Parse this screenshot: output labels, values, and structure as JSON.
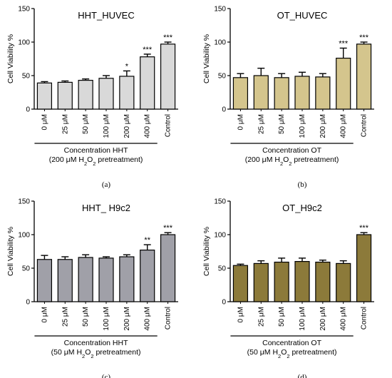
{
  "colors": {
    "axis": "#000000",
    "bar_stroke": "#000000"
  },
  "chart_data": [
    {
      "type": "bar",
      "panel": "(a)",
      "title": "HHT_HUVEC",
      "ylabel": "Cell Viability %",
      "ylim": [
        0,
        150
      ],
      "yticks": [
        0,
        50,
        100,
        150
      ],
      "categories": [
        "0 μM",
        "25 μM",
        "50 μM",
        "100 μM",
        "200 μM",
        "400 μM",
        "Control"
      ],
      "values": [
        39,
        40,
        43,
        46,
        49,
        78,
        97
      ],
      "errors": [
        2,
        2,
        2,
        4,
        8,
        4,
        3
      ],
      "significance": [
        "",
        "",
        "",
        "",
        "*",
        "***",
        "***"
      ],
      "bracket_span": [
        0,
        5
      ],
      "xlabel_line1": "Concentration HHT",
      "xlabel_line2_pre": "(200 μM H",
      "xlabel_line2_sub1": "2",
      "xlabel_line2_mid": "O",
      "xlabel_line2_sub2": "2",
      "xlabel_line2_post": " pretreatment)",
      "color": "#d9d9d9"
    },
    {
      "type": "bar",
      "panel": "(b)",
      "title": "OT_HUVEC",
      "ylabel": "Cell Viability %",
      "ylim": [
        0,
        150
      ],
      "yticks": [
        0,
        50,
        100,
        150
      ],
      "categories": [
        "0 μM",
        "25 μM",
        "50 μM",
        "100 μM",
        "200 μM",
        "400 μM",
        "Control"
      ],
      "values": [
        47,
        50,
        47,
        49,
        48,
        76,
        97
      ],
      "errors": [
        6,
        11,
        6,
        6,
        5,
        15,
        3
      ],
      "significance": [
        "",
        "",
        "",
        "",
        "",
        "***",
        "***"
      ],
      "bracket_span": [
        0,
        5
      ],
      "xlabel_line1": "Concentration OT",
      "xlabel_line2_pre": "(200 μM H",
      "xlabel_line2_sub1": "2",
      "xlabel_line2_mid": "O",
      "xlabel_line2_sub2": "2",
      "xlabel_line2_post": " pretreatment)",
      "color": "#d4c58d"
    },
    {
      "type": "bar",
      "panel": "(c)",
      "title": "HHT_ H9c2",
      "ylabel": "Cell Viability %",
      "ylim": [
        0,
        150
      ],
      "yticks": [
        0,
        50,
        100,
        150
      ],
      "categories": [
        "0 μM",
        "25 μM",
        "50 μM",
        "100 μM",
        "200 μM",
        "400 μM",
        "Control"
      ],
      "values": [
        63,
        63,
        66,
        65,
        67,
        77,
        100
      ],
      "errors": [
        6,
        4,
        4,
        2,
        3,
        8,
        3
      ],
      "significance": [
        "",
        "",
        "",
        "",
        "",
        "**",
        "***"
      ],
      "bracket_span": [
        0,
        5
      ],
      "xlabel_line1": "Concentration HHT",
      "xlabel_line2_pre": "(50 μM H",
      "xlabel_line2_sub1": "2",
      "xlabel_line2_mid": "O",
      "xlabel_line2_sub2": "2",
      "xlabel_line2_post": " pretreatment)",
      "color": "#a0a0a8"
    },
    {
      "type": "bar",
      "panel": "(d)",
      "title": "OT_H9c2",
      "ylabel": "Cell Viability %",
      "ylim": [
        0,
        150
      ],
      "yticks": [
        0,
        50,
        100,
        150
      ],
      "categories": [
        "0 μM",
        "25 μM",
        "50 μM",
        "100 μM",
        "200 μM",
        "400 μM",
        "Control"
      ],
      "values": [
        54,
        57,
        59,
        60,
        59,
        57,
        100
      ],
      "errors": [
        2,
        4,
        6,
        5,
        3,
        4,
        3
      ],
      "significance": [
        "",
        "",
        "",
        "",
        "",
        "",
        "***"
      ],
      "bracket_span": [
        0,
        5
      ],
      "xlabel_line1": "Concentration OT",
      "xlabel_line2_pre": "(50 μM H",
      "xlabel_line2_sub1": "2",
      "xlabel_line2_mid": "O",
      "xlabel_line2_sub2": "2",
      "xlabel_line2_post": " pretreatment)",
      "color": "#8c7a3a"
    }
  ]
}
